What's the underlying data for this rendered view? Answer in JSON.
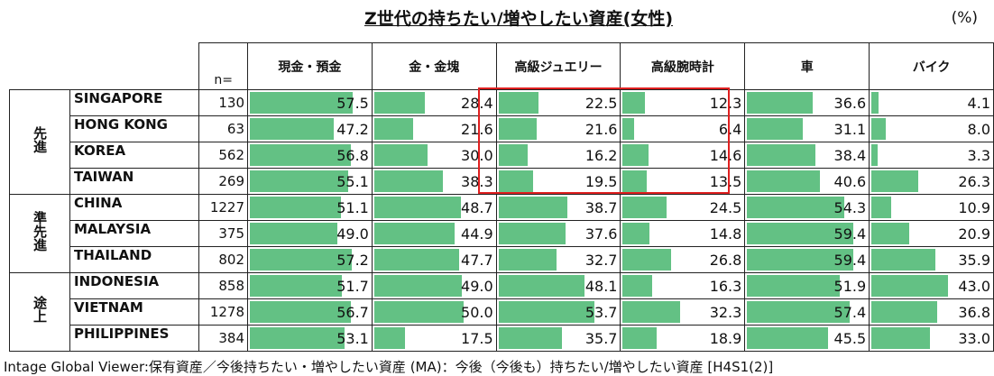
{
  "chart_data": {
    "type": "table",
    "title": "Z世代の持ちたい/増やしたい資産(女性)",
    "unit": "(%)",
    "n_label": "n=",
    "columns": [
      "現金・預金",
      "金・金塊",
      "高級ジュエリー",
      "高級腕時計",
      "車",
      "バイク"
    ],
    "groups": [
      {
        "label": "先進",
        "rows": [
          {
            "country": "SINGAPORE",
            "n": "130",
            "values": [
              57.5,
              28.4,
              22.5,
              12.3,
              36.6,
              4.1
            ]
          },
          {
            "country": "HONG KONG",
            "n": "63",
            "values": [
              47.2,
              21.6,
              21.6,
              6.4,
              31.1,
              8.0
            ]
          },
          {
            "country": "KOREA",
            "n": "562",
            "values": [
              56.8,
              30.0,
              16.2,
              14.6,
              38.4,
              3.3
            ]
          },
          {
            "country": "TAIWAN",
            "n": "269",
            "values": [
              55.1,
              38.3,
              19.5,
              13.5,
              40.6,
              26.3
            ]
          }
        ]
      },
      {
        "label": "準先進",
        "rows": [
          {
            "country": "CHINA",
            "n": "1227",
            "values": [
              51.1,
              48.7,
              38.7,
              24.5,
              54.3,
              10.9
            ]
          },
          {
            "country": "MALAYSIA",
            "n": "375",
            "values": [
              49.0,
              44.9,
              37.6,
              14.8,
              59.4,
              20.9
            ]
          },
          {
            "country": "THAILAND",
            "n": "802",
            "values": [
              57.2,
              47.7,
              32.7,
              26.8,
              59.4,
              35.9
            ]
          }
        ]
      },
      {
        "label": "途上",
        "rows": [
          {
            "country": "INDONESIA",
            "n": "858",
            "values": [
              51.7,
              49.0,
              48.1,
              16.3,
              51.9,
              43.0
            ]
          },
          {
            "country": "VIETNAM",
            "n": "1278",
            "values": [
              56.7,
              50.0,
              53.7,
              32.3,
              57.4,
              36.8
            ]
          },
          {
            "country": "PHILIPPINES",
            "n": "384",
            "values": [
              53.1,
              17.5,
              35.7,
              18.9,
              45.5,
              33.0
            ]
          }
        ]
      }
    ],
    "bar_color": "#63c184",
    "highlight_color": "#e02020"
  },
  "footer": "Intage Global Viewer:保有資産／今後持ちたい・増やしたい資産 (MA)：今後（今後も）持ちたい/増やしたい資産 [H4S1(2)]"
}
